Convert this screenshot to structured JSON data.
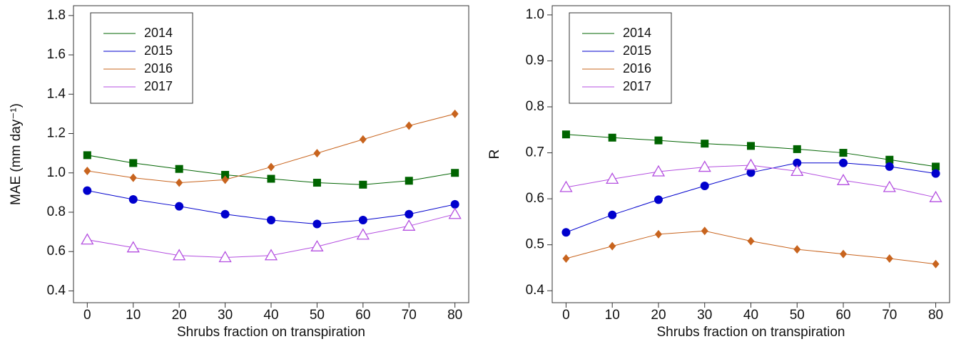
{
  "chart_data": [
    {
      "type": "line",
      "x_label": "Shrubs fraction on transpiration",
      "y_label": "MAE (mm day⁻¹)",
      "x": [
        0,
        10,
        20,
        30,
        40,
        50,
        60,
        70,
        80
      ],
      "xlim": [
        -3,
        83
      ],
      "xticks": [
        0,
        10,
        20,
        30,
        40,
        50,
        60,
        70,
        80
      ],
      "ylim": [
        0.34,
        1.85
      ],
      "yticks": [
        0.4,
        0.6,
        0.8,
        {
          "value": 1,
          "label": "1.0"
        },
        1.2,
        1.4,
        1.6,
        1.8
      ],
      "legend": "upper left",
      "series": [
        {
          "name": "2014",
          "color": "#006400",
          "marker": "square",
          "values": [
            1.09,
            1.05,
            1.02,
            0.99,
            0.97,
            0.95,
            0.94,
            0.96,
            1.0
          ]
        },
        {
          "name": "2015",
          "color": "#0000cd",
          "marker": "circle",
          "values": [
            0.91,
            0.865,
            0.83,
            0.79,
            0.76,
            0.74,
            0.76,
            0.79,
            0.84
          ]
        },
        {
          "name": "2016",
          "color": "#c8641e",
          "marker": "diamond",
          "values": [
            1.01,
            0.975,
            0.95,
            0.965,
            1.03,
            1.1,
            1.17,
            1.24,
            1.3
          ]
        },
        {
          "name": "2017",
          "color": "#b44fe0",
          "marker": "triangle-open",
          "values": [
            0.66,
            0.62,
            0.58,
            0.57,
            0.58,
            0.625,
            0.685,
            0.73,
            0.79
          ]
        }
      ]
    },
    {
      "type": "line",
      "x_label": "Shrubs fraction on transpiration",
      "y_label": "R",
      "x": [
        0,
        10,
        20,
        30,
        40,
        50,
        60,
        70,
        80
      ],
      "xlim": [
        -3,
        83
      ],
      "xticks": [
        0,
        10,
        20,
        30,
        40,
        50,
        60,
        70,
        80
      ],
      "ylim": [
        0.374,
        1.02
      ],
      "yticks": [
        0.4,
        0.5,
        0.6,
        0.7,
        0.8,
        0.9,
        {
          "value": 1,
          "label": "1.0"
        }
      ],
      "legend": "upper left",
      "series": [
        {
          "name": "2014",
          "color": "#006400",
          "marker": "square",
          "values": [
            0.74,
            0.733,
            0.727,
            0.72,
            0.715,
            0.708,
            0.7,
            0.685,
            0.67
          ]
        },
        {
          "name": "2015",
          "color": "#0000cd",
          "marker": "circle",
          "values": [
            0.527,
            0.565,
            0.598,
            0.628,
            0.657,
            0.678,
            0.678,
            0.67,
            0.655
          ]
        },
        {
          "name": "2016",
          "color": "#c8641e",
          "marker": "diamond",
          "values": [
            0.47,
            0.497,
            0.523,
            0.53,
            0.508,
            0.49,
            0.48,
            0.47,
            0.458
          ]
        },
        {
          "name": "2017",
          "color": "#b44fe0",
          "marker": "triangle-open",
          "values": [
            0.625,
            0.643,
            0.659,
            0.669,
            0.673,
            0.66,
            0.64,
            0.625,
            0.603
          ]
        }
      ]
    }
  ]
}
